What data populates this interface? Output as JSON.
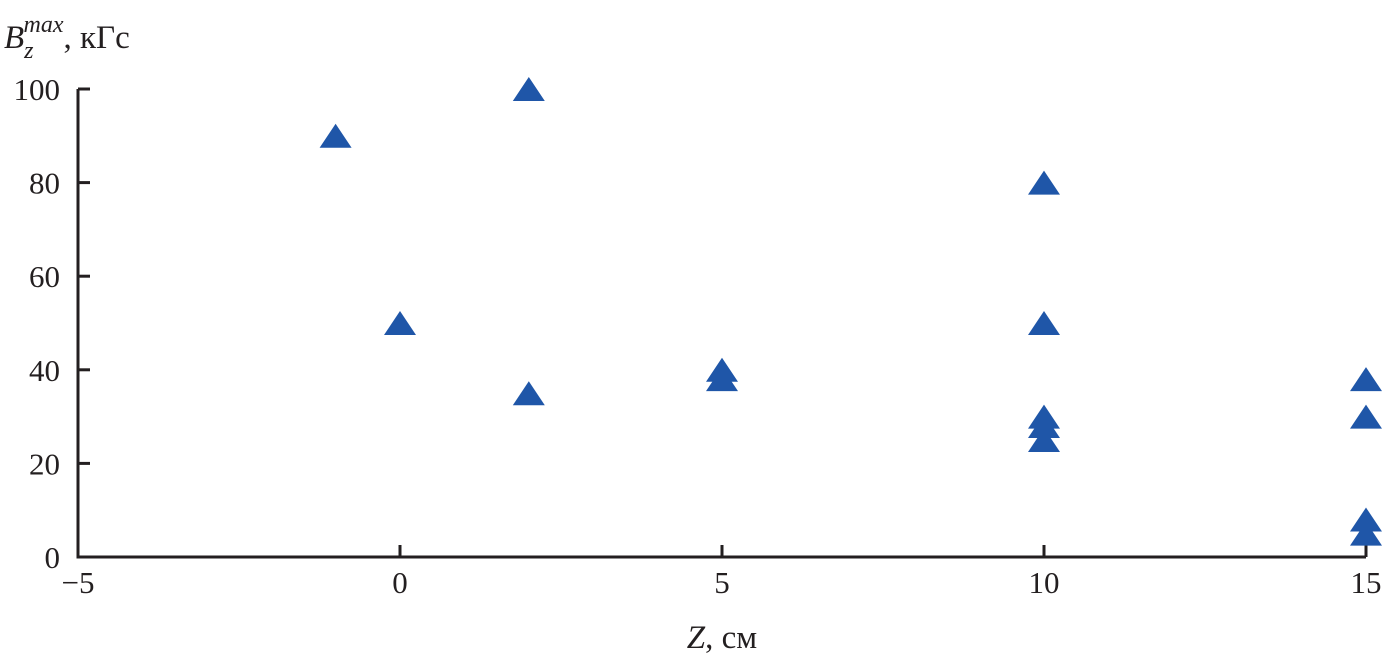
{
  "chart_data": {
    "type": "scatter",
    "marker": "triangle",
    "color": "#1f56a8",
    "axis_color": "#231f20",
    "xlabel": {
      "var": "Z",
      "unit": ", см"
    },
    "ylabel": {
      "var": "B",
      "sub": "z",
      "sup": "max",
      "unit": ", кГс"
    },
    "xlim": [
      -5,
      15
    ],
    "ylim": [
      0,
      100
    ],
    "xticks": [
      -5,
      0,
      5,
      10,
      15
    ],
    "xtick_labels": [
      "−5",
      "0",
      "5",
      "10",
      "15"
    ],
    "yticks": [
      0,
      20,
      40,
      60,
      80,
      100
    ],
    "ytick_labels": [
      "0",
      "20",
      "40",
      "60",
      "80",
      "100"
    ],
    "grid": false,
    "points": [
      {
        "x": -1,
        "y": 90
      },
      {
        "x": 0,
        "y": 50
      },
      {
        "x": 2,
        "y": 100
      },
      {
        "x": 2,
        "y": 35
      },
      {
        "x": 5,
        "y": 40
      },
      {
        "x": 5,
        "y": 38
      },
      {
        "x": 10,
        "y": 80
      },
      {
        "x": 10,
        "y": 50
      },
      {
        "x": 10,
        "y": 30
      },
      {
        "x": 10,
        "y": 28
      },
      {
        "x": 10,
        "y": 25
      },
      {
        "x": 15,
        "y": 38
      },
      {
        "x": 15,
        "y": 30
      },
      {
        "x": 15,
        "y": 8
      },
      {
        "x": 15,
        "y": 5
      }
    ]
  }
}
